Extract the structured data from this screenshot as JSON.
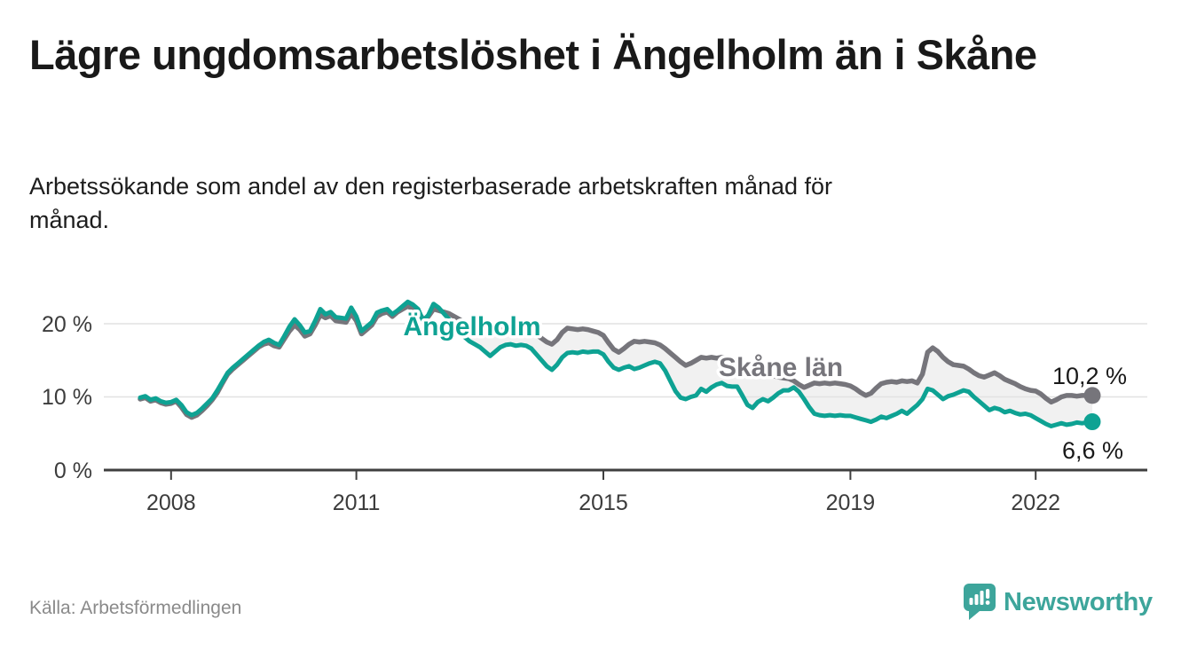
{
  "header": {
    "title": "Lägre ungdomsarbetslöshet i Ängelholm än i Skåne",
    "subtitle": "Arbetssökande som andel av den registerbaserade arbetskraften månad för månad."
  },
  "chart_data": {
    "type": "line",
    "title": "Lägre ungdomsarbetslöshet i Ängelholm än i Skåne",
    "subtitle": "Arbetssökande som andel av den registerbaserade arbetskraften månad för månad.",
    "unit": "%",
    "frequency": "monthly",
    "x_start": "2007-07",
    "x_end": "2022-12",
    "ylim": [
      0,
      24
    ],
    "yticks": [
      "20 %",
      "10 %",
      "0 %"
    ],
    "xticks": [
      "2008",
      "2011",
      "2015",
      "2019",
      "2022"
    ],
    "grid": true,
    "legend_position": "inline-labels",
    "band_fill": "#f1f1f1",
    "grid_color": "#e2e2e2",
    "axis_color": "#3f3f3f",
    "series": [
      {
        "name": "Skåne län",
        "color": "#76757b",
        "end_value": 10.2,
        "end_label": "10,2 %",
        "values": [
          9.7,
          9.9,
          9.4,
          9.6,
          9.2,
          9.0,
          9.1,
          9.4,
          8.6,
          7.6,
          7.2,
          7.5,
          8.1,
          8.8,
          9.6,
          10.6,
          11.9,
          13.1,
          13.8,
          14.4,
          15.0,
          15.6,
          16.2,
          16.8,
          17.2,
          17.4,
          17.0,
          16.8,
          17.9,
          19.0,
          19.8,
          19.2,
          18.3,
          18.6,
          19.8,
          21.2,
          20.8,
          21.1,
          20.4,
          20.3,
          20.2,
          21.4,
          20.4,
          18.6,
          19.2,
          19.8,
          21.0,
          21.4,
          21.6,
          21.0,
          21.6,
          22.0,
          22.4,
          22.0,
          21.6,
          20.6,
          21.0,
          22.0,
          21.8,
          21.6,
          21.4,
          21.0,
          20.6,
          20.2,
          19.8,
          19.6,
          19.5,
          19.2,
          18.8,
          19.0,
          19.3,
          19.5,
          19.6,
          19.4,
          19.5,
          19.3,
          19.0,
          18.5,
          18.0,
          17.5,
          17.2,
          17.8,
          18.8,
          19.4,
          19.3,
          19.2,
          19.3,
          19.2,
          19.0,
          18.8,
          18.4,
          17.4,
          16.5,
          16.1,
          16.6,
          17.2,
          17.6,
          17.5,
          17.6,
          17.5,
          17.4,
          17.1,
          16.6,
          16.0,
          15.4,
          14.8,
          14.3,
          14.6,
          15.0,
          15.4,
          15.3,
          15.4,
          15.3,
          15.4,
          15.4,
          15.2,
          14.9,
          14.5,
          14.1,
          13.8,
          13.5,
          13.3,
          13.1,
          12.9,
          12.7,
          12.6,
          12.5,
          12.2,
          11.7,
          11.3,
          11.6,
          11.9,
          11.8,
          11.9,
          11.8,
          11.9,
          11.8,
          11.7,
          11.5,
          11.1,
          10.6,
          10.2,
          10.5,
          11.2,
          11.8,
          12.0,
          12.1,
          12.0,
          12.2,
          12.1,
          12.2,
          11.9,
          13.1,
          16.1,
          16.7,
          16.2,
          15.4,
          14.8,
          14.4,
          14.3,
          14.2,
          13.8,
          13.3,
          12.9,
          12.7,
          13.0,
          13.3,
          12.9,
          12.4,
          12.1,
          11.8,
          11.4,
          11.1,
          10.9,
          10.8,
          10.4,
          9.8,
          9.3,
          9.6,
          10.0,
          10.2,
          10.2,
          10.1,
          10.2,
          10.2,
          10.2
        ]
      },
      {
        "name": "Ängelholm",
        "color": "#0ea293",
        "end_value": 6.6,
        "end_label": "6,6 %",
        "values": [
          9.9,
          10.1,
          9.6,
          9.8,
          9.4,
          9.2,
          9.3,
          9.6,
          8.9,
          7.9,
          7.5,
          7.8,
          8.4,
          9.1,
          9.8,
          10.9,
          12.1,
          13.3,
          14.0,
          14.6,
          15.2,
          15.8,
          16.4,
          17.0,
          17.5,
          17.8,
          17.4,
          17.1,
          18.3,
          19.6,
          20.6,
          19.8,
          18.8,
          19.0,
          20.4,
          22.0,
          21.3,
          21.6,
          20.9,
          20.8,
          20.7,
          22.2,
          21.0,
          19.0,
          19.6,
          20.2,
          21.5,
          21.8,
          22.0,
          21.3,
          21.8,
          22.4,
          23.0,
          22.6,
          22.0,
          20.4,
          21.2,
          22.7,
          22.2,
          21.4,
          20.6,
          19.8,
          19.0,
          18.2,
          17.6,
          17.2,
          16.8,
          16.2,
          15.6,
          16.2,
          16.8,
          17.1,
          17.2,
          17.0,
          17.1,
          17.0,
          16.6,
          15.8,
          15.0,
          14.2,
          13.7,
          14.4,
          15.4,
          16.0,
          16.1,
          16.0,
          16.2,
          16.1,
          16.2,
          16.2,
          15.8,
          14.8,
          14.0,
          13.7,
          14.0,
          14.2,
          13.8,
          14.0,
          14.3,
          14.6,
          14.8,
          14.6,
          13.6,
          12.2,
          10.8,
          9.9,
          9.7,
          10.0,
          10.2,
          11.1,
          10.7,
          11.3,
          11.7,
          11.9,
          11.5,
          11.4,
          11.4,
          10.2,
          8.9,
          8.5,
          9.3,
          9.7,
          9.4,
          9.9,
          10.5,
          10.9,
          10.9,
          11.3,
          10.7,
          9.7,
          8.6,
          7.7,
          7.5,
          7.4,
          7.5,
          7.4,
          7.5,
          7.4,
          7.4,
          7.2,
          7.0,
          6.8,
          6.6,
          6.9,
          7.3,
          7.1,
          7.4,
          7.7,
          8.1,
          7.7,
          8.3,
          8.9,
          9.7,
          11.1,
          10.9,
          10.3,
          9.7,
          10.1,
          10.3,
          10.6,
          10.9,
          10.7,
          10.0,
          9.4,
          8.8,
          8.2,
          8.5,
          8.3,
          7.9,
          8.1,
          7.8,
          7.6,
          7.7,
          7.5,
          7.1,
          6.7,
          6.3,
          6.0,
          6.2,
          6.4,
          6.2,
          6.3,
          6.5,
          6.4,
          6.5,
          6.6
        ]
      }
    ]
  },
  "footer": {
    "source": "Källa: Arbetsförmedlingen",
    "brand": "Newsworthy",
    "brand_color": "#3da59b"
  }
}
